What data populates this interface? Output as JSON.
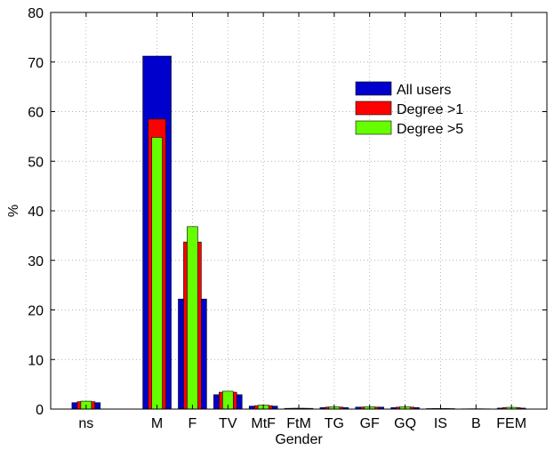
{
  "chart_data": {
    "type": "bar",
    "title": "",
    "xlabel": "Gender",
    "ylabel": "%",
    "ylim": [
      0,
      80
    ],
    "yticks": [
      0,
      10,
      20,
      30,
      40,
      50,
      60,
      70,
      80
    ],
    "grid": true,
    "legend_position": "top-right",
    "x_positions": [
      1,
      3,
      4,
      5,
      6,
      7,
      8,
      9,
      10,
      11,
      12,
      13
    ],
    "xlim": [
      0,
      14
    ],
    "categories": [
      "ns",
      "M",
      "F",
      "TV",
      "MtF",
      "FtM",
      "TG",
      "GF",
      "GQ",
      "IS",
      "B",
      "FEM"
    ],
    "series": [
      {
        "name": "All users",
        "color": "#0000cc",
        "values": [
          1.3,
          71.2,
          22.2,
          2.9,
          0.6,
          0.15,
          0.3,
          0.4,
          0.3,
          0.1,
          0.05,
          0.2
        ]
      },
      {
        "name": "Degree >1",
        "color": "#ff0000",
        "values": [
          1.5,
          58.5,
          33.7,
          3.4,
          0.7,
          0.15,
          0.4,
          0.4,
          0.4,
          0.1,
          0.05,
          0.3
        ]
      },
      {
        "name": "Degree >5",
        "color": "#66ff00",
        "values": [
          1.6,
          54.8,
          36.8,
          3.6,
          0.8,
          0.15,
          0.45,
          0.45,
          0.45,
          0.1,
          0.05,
          0.35
        ]
      }
    ]
  }
}
